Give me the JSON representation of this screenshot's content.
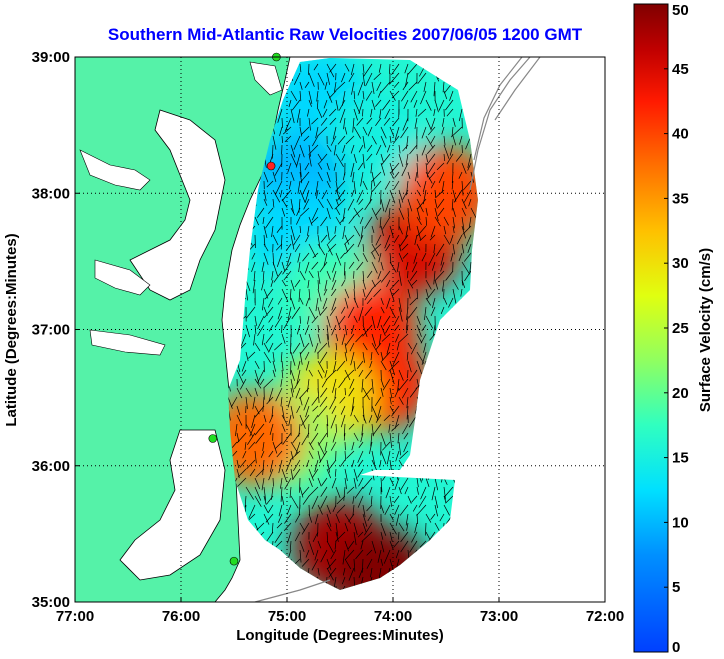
{
  "chart_data": {
    "type": "heatmap",
    "title": "Southern Mid-Atlantic Raw Velocities 2007/06/05 1200 GMT",
    "xlabel": "Longitude (Degrees:Minutes)",
    "ylabel": "Latitude (Degrees:Minutes)",
    "x_ticks": [
      "77:00",
      "76:00",
      "75:00",
      "74:00",
      "73:00",
      "72:00"
    ],
    "y_ticks": [
      "39:00",
      "38:00",
      "37:00",
      "36:00",
      "35:00"
    ],
    "xlim": [
      -77,
      -72
    ],
    "ylim": [
      35,
      39
    ],
    "grid": true,
    "colorbar": {
      "label": "Surface Velocity (cm/s)",
      "range": [
        0,
        50
      ],
      "ticks": [
        "0",
        "5",
        "10",
        "15",
        "20",
        "25",
        "30",
        "35",
        "40",
        "45",
        "50"
      ],
      "colormap": "jet"
    },
    "land_color": "#55f2a8",
    "vector_color": "#000000",
    "velocity_regions": [
      {
        "lon": -74.7,
        "lat": 38.7,
        "speed": 12
      },
      {
        "lon": -74.2,
        "lat": 38.4,
        "speed": 15
      },
      {
        "lon": -74.9,
        "lat": 38.1,
        "speed": 10
      },
      {
        "lon": -74.9,
        "lat": 37.7,
        "speed": 12
      },
      {
        "lon": -73.8,
        "lat": 37.6,
        "speed": 45
      },
      {
        "lon": -73.5,
        "lat": 38.0,
        "speed": 40
      },
      {
        "lon": -74.6,
        "lat": 37.3,
        "speed": 18
      },
      {
        "lon": -74.2,
        "lat": 37.0,
        "speed": 42
      },
      {
        "lon": -74.1,
        "lat": 36.6,
        "speed": 42
      },
      {
        "lon": -74.6,
        "lat": 36.5,
        "speed": 30
      },
      {
        "lon": -75.0,
        "lat": 36.2,
        "speed": 22
      },
      {
        "lon": -75.3,
        "lat": 36.2,
        "speed": 38
      },
      {
        "lon": -74.5,
        "lat": 35.4,
        "speed": 48
      },
      {
        "lon": -74.1,
        "lat": 35.2,
        "speed": 50
      }
    ],
    "station_markers": [
      {
        "lon": -75.1,
        "lat": 39.0,
        "color": "#22dd22"
      },
      {
        "lon": -75.15,
        "lat": 38.2,
        "color": "#ff2222"
      },
      {
        "lon": -75.7,
        "lat": 36.2,
        "color": "#22dd22"
      },
      {
        "lon": -75.5,
        "lat": 35.3,
        "color": "#22dd22"
      }
    ]
  }
}
